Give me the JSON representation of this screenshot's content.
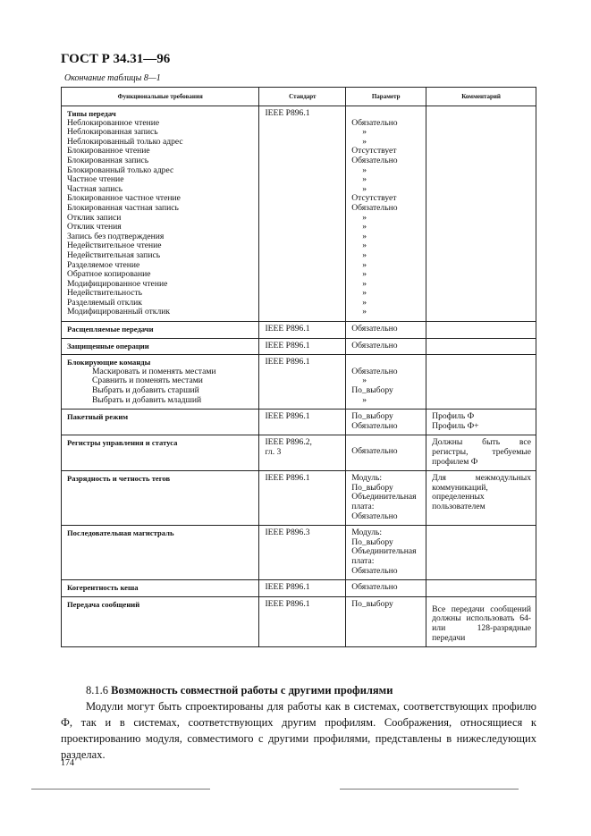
{
  "header": {
    "title": "ГОСТ Р 34.31—96"
  },
  "caption": "Окончание таблицы 8—1",
  "table": {
    "columns": [
      "Функциональные требования",
      "Стандарт",
      "Параметр",
      "Комментарий"
    ],
    "transfer_types": {
      "title": "Типы передач",
      "standard": "IEEE P896.1",
      "items": [
        "Неблокированное чтение",
        "Неблокированная запись",
        "Неблокированный только адрес",
        "Блокированное чтение",
        "Блокированная запись",
        "Блокированный только адрес",
        "Частное чтение",
        "Частная запись",
        "Блокированное частное чтение",
        "Блокированная частная запись",
        "Отклик записи",
        "Отклик чтения",
        "Запись без подтверждения",
        "Недействительное чтение",
        "Недействительная запись",
        "Разделяемое чтение",
        "Обратное копирование",
        "Модифицированное чтение",
        "Недействительность",
        "Разделяемый отклик",
        "Модифицированный отклик"
      ],
      "params": [
        "Обязательно",
        "»",
        "»",
        "Отсутствует",
        "Обязательно",
        "»",
        "»",
        "»",
        "Отсутствует",
        "Обязательно",
        "»",
        "»",
        "»",
        "»",
        "»",
        "»",
        "»",
        "»",
        "»",
        "»",
        "»"
      ]
    },
    "rows": [
      {
        "req": "Расщепляемые передачи",
        "std": "IEEE P896.1",
        "param": "Обязательно",
        "comment": ""
      },
      {
        "req": "Защищенные операции",
        "std": "IEEE P896.1",
        "param": "Обязательно",
        "comment": ""
      }
    ],
    "blocking": {
      "title": "Блокирующие команды",
      "standard": "IEEE P896.1",
      "items": [
        "Маскировать и поменять местами",
        "Сравнить и поменять местами",
        "Выбрать и добавить старший",
        "Выбрать и добавить младший"
      ],
      "params": [
        "Обязательно",
        "»",
        "По_выбору",
        "»"
      ]
    },
    "rows2": [
      {
        "req": "Пакетный режим",
        "std": "IEEE P896.1",
        "param": "По_выбору\nОбязательно",
        "comment": "Профиль Ф\nПрофиль Ф+"
      },
      {
        "req": "Регистры управления и статуса",
        "std": "IEEE P896.2,\nгл. 3",
        "param": "Обязательно",
        "comment": "Должны быть все регистры, требуемые профилем Ф"
      },
      {
        "req": "Разрядность и четность тегов",
        "std": "IEEE P896.1",
        "param": "Модуль:\nПо_выбору\nОбъединительная плата:\nОбязательно",
        "comment": "Для межмодульных коммуникаций, определенных пользователем"
      },
      {
        "req": "Последовательная магистраль",
        "std": "IEEE P896.3",
        "param": "Модуль:\nПо_выбору\nОбъединительная плата:\nОбязательно",
        "comment": ""
      },
      {
        "req": "Когерентность кеша",
        "std": "IEEE P896.1",
        "param": "Обязательно",
        "comment": ""
      },
      {
        "req": "Передача сообщений",
        "std": "IEEE P896.1",
        "param": "По_выбору",
        "comment": "Все передачи сообщений должны использовать 64- или 128-разрядные передачи"
      }
    ]
  },
  "section": {
    "number": "8.1.6",
    "title": "Возможность совместной работы с другими профилями"
  },
  "paragraph": "Модули могут быть спроектированы для работы как в системах, соответствующих профилю Ф, так и в системах, соответствующих другим профилям. Соображения, относящиеся к проектированию модуля, совместимого с другими профилями, представлены в нижеследующих разделах.",
  "page_number": "174"
}
